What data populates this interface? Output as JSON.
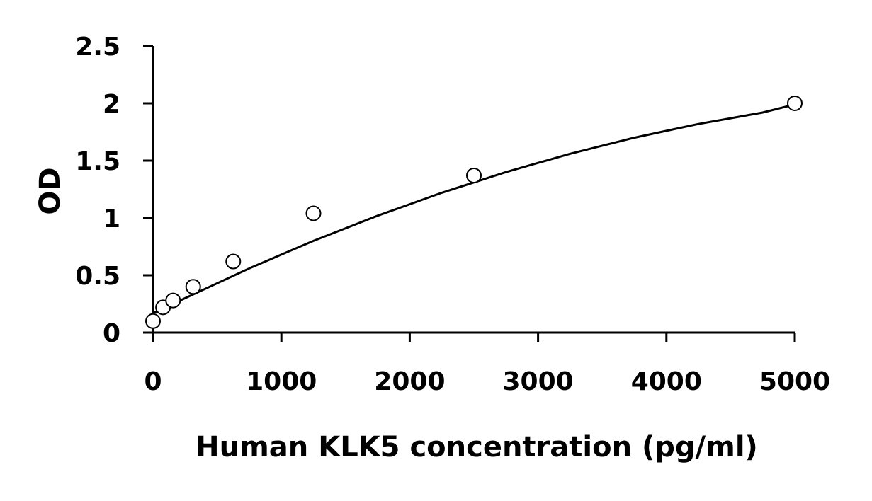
{
  "chart_data": {
    "type": "scatter",
    "title": "",
    "xlabel": "Human KLK5 concentration (pg/ml)",
    "ylabel": "OD",
    "xlim": [
      0,
      5000
    ],
    "ylim": [
      0,
      2.5
    ],
    "x_ticks": [
      "0",
      "1000",
      "2000",
      "3000",
      "4000",
      "5000"
    ],
    "y_ticks": [
      "0",
      "0.5",
      "1",
      "1.5",
      "2",
      "2.5"
    ],
    "grid": false,
    "legend": "none",
    "series": [
      {
        "marker": "open-circle",
        "x": [
          0,
          78,
          156,
          313,
          625,
          1250,
          2500,
          5000
        ],
        "y": [
          0.1,
          0.22,
          0.28,
          0.4,
          0.62,
          1.04,
          1.37,
          2.0
        ]
      }
    ],
    "fit_curve": {
      "type": "polynomial-2",
      "x": [
        0,
        250,
        500,
        750,
        1000,
        1250,
        1500,
        1750,
        2000,
        2250,
        2500,
        2750,
        3000,
        3250,
        3500,
        3750,
        4000,
        4250,
        4500,
        4750,
        5000
      ],
      "y": [
        0.17,
        0.3,
        0.43,
        0.56,
        0.68,
        0.8,
        0.91,
        1.02,
        1.12,
        1.22,
        1.31,
        1.4,
        1.48,
        1.56,
        1.63,
        1.7,
        1.76,
        1.82,
        1.87,
        1.92,
        1.99
      ]
    },
    "colors": {
      "axis": "#000000",
      "marker": "#000000",
      "background": "#ffffff"
    }
  }
}
